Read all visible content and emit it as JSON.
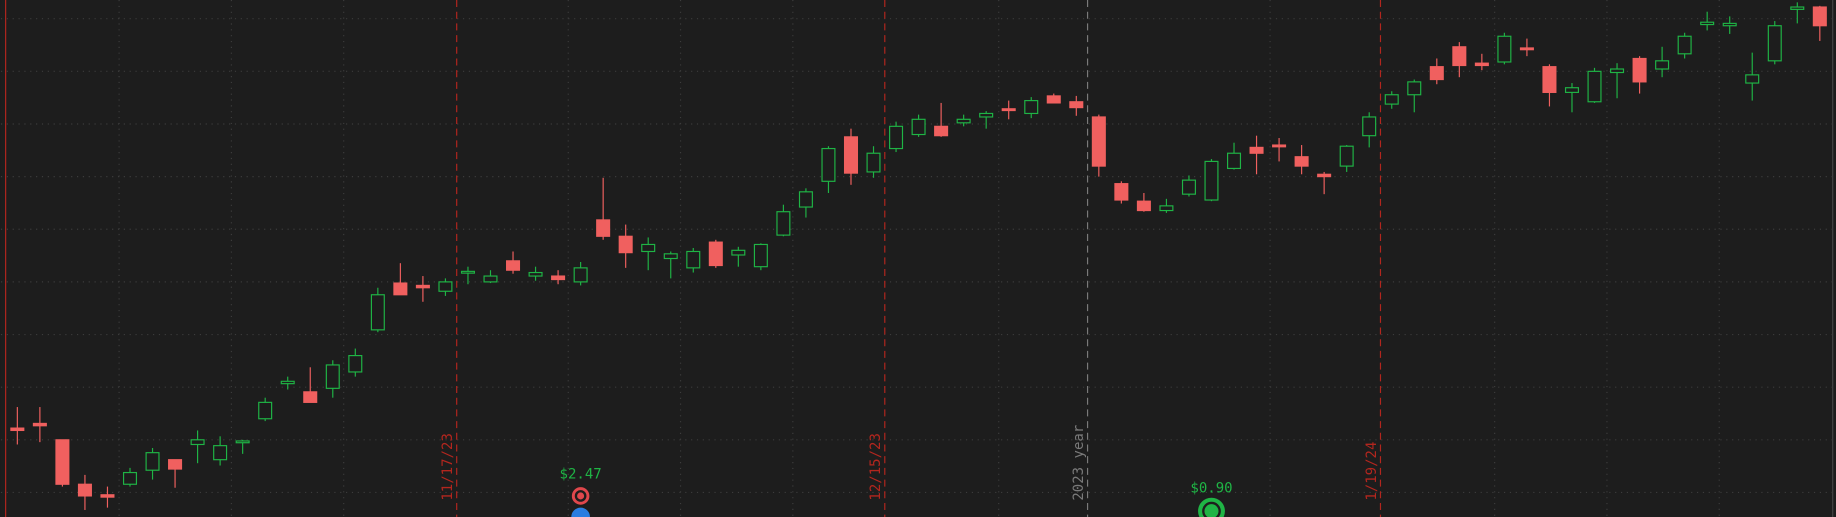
{
  "chart_data": {
    "type": "candlestick",
    "categories": [
      null,
      null,
      null,
      null,
      null,
      null,
      null,
      null,
      null,
      null,
      null,
      null,
      null,
      null,
      null,
      null,
      null,
      null,
      null,
      null,
      "11/17/23",
      null,
      null,
      null,
      null,
      null,
      null,
      null,
      null,
      null,
      null,
      null,
      null,
      null,
      null,
      null,
      null,
      null,
      null,
      "12/15/23",
      null,
      null,
      null,
      null,
      null,
      null,
      null,
      null,
      "2023 year",
      null,
      null,
      null,
      null,
      null,
      null,
      null,
      null,
      null,
      null,
      null,
      null,
      "1/19/24",
      null,
      null,
      null,
      null,
      null,
      null,
      null,
      null,
      null,
      null,
      null,
      null,
      null,
      null,
      null,
      null,
      null,
      null,
      null
    ],
    "category_colors": [
      null,
      null,
      null,
      null,
      null,
      null,
      null,
      null,
      null,
      null,
      null,
      null,
      null,
      null,
      null,
      null,
      null,
      null,
      null,
      null,
      "#b3261e",
      null,
      null,
      null,
      null,
      null,
      null,
      null,
      null,
      null,
      null,
      null,
      null,
      null,
      null,
      null,
      null,
      null,
      null,
      "#b3261e",
      null,
      null,
      null,
      null,
      null,
      null,
      null,
      null,
      "#7a7a7a",
      null,
      null,
      null,
      null,
      null,
      null,
      null,
      null,
      null,
      null,
      null,
      null,
      "#b3261e",
      null,
      null,
      null,
      null,
      null,
      null,
      null,
      null,
      null,
      null,
      null,
      null,
      null,
      null,
      null,
      null,
      null,
      null,
      null
    ],
    "open": [
      76,
      80,
      66,
      28,
      19,
      28,
      40,
      49,
      62,
      49,
      64,
      84,
      114,
      107,
      110,
      124,
      160,
      200,
      198,
      193,
      209,
      201,
      219,
      206,
      206,
      201,
      254,
      240,
      227,
      221,
      213,
      235,
      224,
      214,
      241,
      265,
      287,
      325,
      295,
      315,
      327,
      334,
      337,
      342,
      349,
      345,
      360,
      355,
      342,
      285,
      270,
      262,
      276,
      271,
      298,
      316,
      318,
      308,
      293,
      300,
      326,
      353,
      361,
      385,
      402,
      388,
      389,
      401,
      385,
      363,
      355,
      380,
      392,
      383,
      396,
      421,
      420,
      371,
      390,
      434,
      436
    ],
    "high": [
      94,
      94,
      66,
      36,
      26,
      42,
      59,
      49,
      74,
      69,
      66,
      102,
      120,
      128,
      134,
      144,
      196,
      217,
      206,
      204,
      214,
      211,
      227,
      214,
      211,
      218,
      290,
      250,
      239,
      227,
      230,
      237,
      231,
      234,
      267,
      281,
      317,
      332,
      317,
      338,
      344,
      354,
      344,
      347,
      356,
      359,
      362,
      360,
      344,
      287,
      277,
      272,
      292,
      306,
      320,
      326,
      324,
      318,
      295,
      318,
      346,
      364,
      374,
      392,
      406,
      396,
      414,
      409,
      387,
      371,
      384,
      388,
      394,
      402,
      414,
      432,
      428,
      397,
      424,
      440,
      437
    ],
    "low": [
      62,
      64,
      26,
      6,
      8,
      26,
      32,
      25,
      46,
      44,
      54,
      82,
      109,
      98,
      102,
      120,
      158,
      190,
      184,
      189,
      199,
      200,
      208,
      202,
      199,
      198,
      237,
      213,
      211,
      204,
      209,
      213,
      214,
      211,
      240,
      256,
      277,
      284,
      290,
      312,
      325,
      325,
      334,
      332,
      340,
      341,
      354,
      343,
      291,
      268,
      261,
      260,
      274,
      270,
      297,
      293,
      304,
      293,
      276,
      295,
      316,
      349,
      346,
      370,
      376,
      382,
      387,
      394,
      351,
      346,
      354,
      358,
      362,
      376,
      392,
      416,
      413,
      356,
      387,
      422,
      407
    ],
    "close": [
      74,
      78,
      28,
      18,
      17,
      38,
      55,
      41,
      66,
      61,
      65,
      98,
      116,
      98,
      130,
      138,
      190,
      190,
      196,
      201,
      210,
      206,
      211,
      209,
      203,
      213,
      240,
      226,
      233,
      225,
      227,
      215,
      228,
      233,
      261,
      278,
      315,
      294,
      311,
      334,
      340,
      326,
      340,
      345,
      348,
      356,
      354,
      350,
      300,
      271,
      262,
      266,
      288,
      304,
      311,
      311,
      317,
      300,
      291,
      317,
      342,
      361,
      372,
      374,
      386,
      386,
      411,
      400,
      363,
      367,
      381,
      383,
      372,
      390,
      411,
      423,
      422,
      378,
      420,
      436,
      420
    ],
    "up_color": "#1fb445",
    "down_color": "#f0605f",
    "event_labels": [
      null,
      null,
      null,
      null,
      null,
      null,
      null,
      null,
      null,
      null,
      null,
      null,
      null,
      null,
      null,
      null,
      null,
      null,
      null,
      null,
      null,
      null,
      null,
      null,
      null,
      "$2.47",
      null,
      null,
      null,
      null,
      null,
      null,
      null,
      null,
      null,
      null,
      null,
      null,
      null,
      null,
      null,
      null,
      null,
      null,
      null,
      null,
      null,
      null,
      null,
      null,
      null,
      null,
      null,
      "$0.90",
      null,
      null,
      null,
      null,
      null,
      null,
      null,
      null,
      null,
      null,
      null,
      null,
      null,
      null,
      null,
      null,
      null,
      null,
      null,
      null,
      null,
      null,
      null,
      null,
      null,
      null,
      null
    ],
    "event_icon_colors": [
      null,
      null,
      null,
      null,
      null,
      null,
      null,
      null,
      null,
      null,
      null,
      null,
      null,
      null,
      null,
      null,
      null,
      null,
      null,
      null,
      null,
      null,
      null,
      null,
      null,
      "#e0474c",
      null,
      null,
      null,
      null,
      null,
      null,
      null,
      null,
      null,
      null,
      null,
      null,
      null,
      null,
      null,
      null,
      null,
      null,
      null,
      null,
      null,
      null,
      null,
      null,
      null,
      null,
      null,
      "#1fb445",
      null,
      null,
      null,
      null,
      null,
      null,
      null,
      null,
      null,
      null,
      null,
      null,
      null,
      null,
      null,
      null,
      null,
      null,
      null,
      null,
      null,
      null,
      null,
      null,
      null,
      null,
      null
    ],
    "ylim": [
      0,
      442
    ],
    "yticks": [
      21,
      66,
      111,
      156,
      201,
      246,
      291,
      336,
      381,
      426
    ],
    "grid": true
  }
}
